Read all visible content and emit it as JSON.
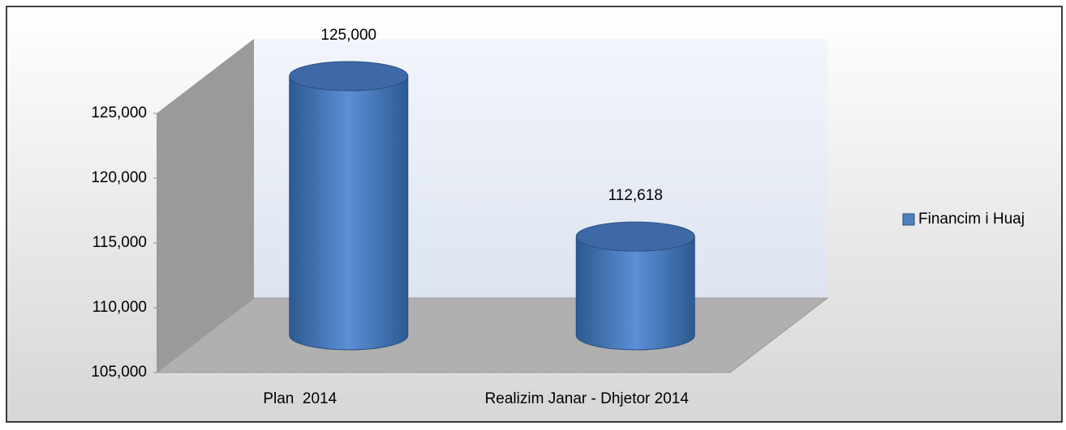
{
  "chart_data": {
    "type": "cylinder",
    "categories": [
      "Plan  2014",
      "Realizim Janar - Dhjetor 2014"
    ],
    "series": [
      {
        "name": "Financim i Huaj",
        "color": "#4f81bd",
        "values": [
          125000,
          112618
        ],
        "value_labels": [
          "125,000",
          "112,618"
        ]
      }
    ],
    "ylim": [
      105000,
      125000
    ],
    "yticks": [
      {
        "value": 105000,
        "label": "105,000"
      },
      {
        "value": 110000,
        "label": "110,000"
      },
      {
        "value": 115000,
        "label": "115,000"
      },
      {
        "value": 120000,
        "label": "120,000"
      },
      {
        "value": 125000,
        "label": "125,000"
      }
    ],
    "legend": "right"
  }
}
